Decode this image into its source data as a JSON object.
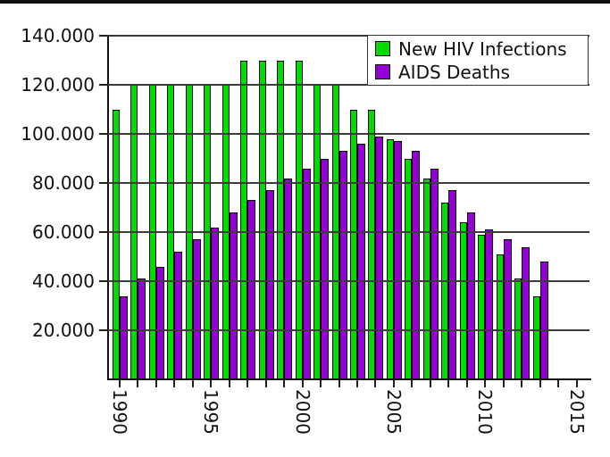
{
  "page": {
    "background": "#ffffff",
    "top_strip_color": "#111111"
  },
  "chart_data": {
    "type": "bar",
    "title": "",
    "x_years": [
      1990,
      1991,
      1992,
      1993,
      1994,
      1995,
      1996,
      1997,
      1998,
      1999,
      2000,
      2001,
      2002,
      2003,
      2004,
      2005,
      2006,
      2007,
      2008,
      2009,
      2010,
      2011,
      2012,
      2013
    ],
    "series": [
      {
        "name": "New HIV Infections",
        "color": "#00DC00",
        "values": [
          110000,
          120000,
          120000,
          120000,
          120000,
          120000,
          120000,
          130000,
          130000,
          130000,
          130000,
          120000,
          120000,
          110000,
          110000,
          98000,
          90000,
          82000,
          72000,
          64000,
          59000,
          51000,
          41000,
          34000
        ]
      },
      {
        "name": "AIDS Deaths",
        "color": "#9400D3",
        "values": [
          34000,
          41000,
          46000,
          52000,
          57000,
          62000,
          68000,
          73000,
          77000,
          82000,
          86000,
          90000,
          93000,
          96000,
          99000,
          97000,
          93000,
          86000,
          77000,
          68000,
          61000,
          57000,
          54000,
          48000
        ]
      }
    ],
    "ylim": [
      0,
      140000
    ],
    "y_ticks": [
      {
        "value": 20000,
        "label": "20.000"
      },
      {
        "value": 40000,
        "label": "40.000"
      },
      {
        "value": 60000,
        "label": "60.000"
      },
      {
        "value": 80000,
        "label": "80.000"
      },
      {
        "value": 100000,
        "label": "100.000"
      },
      {
        "value": 120000,
        "label": "120.000"
      },
      {
        "value": 140000,
        "label": "140.000"
      }
    ],
    "x_axis": {
      "start": 1990,
      "end": 2015,
      "tick_every": 1,
      "label_every": 5,
      "labels": [
        "1990",
        "1995",
        "2000",
        "2005",
        "2010",
        "2015"
      ]
    },
    "grid": true,
    "gridlines_over_bars": true,
    "bar_outline_color": "#000000",
    "legend": {
      "position": "top-right",
      "border": true
    }
  }
}
